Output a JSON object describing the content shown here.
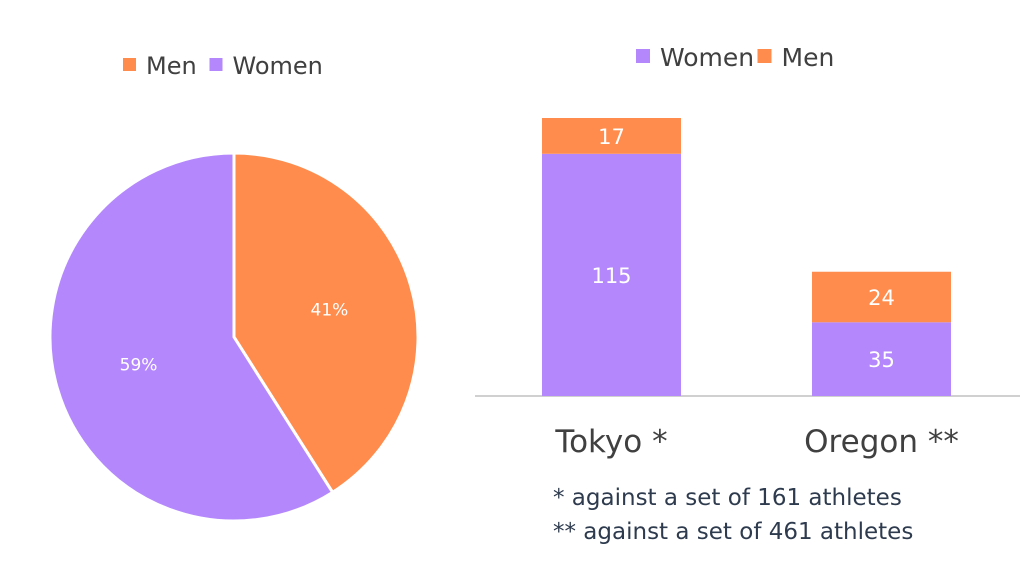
{
  "colors": {
    "men": "#ff8c4d",
    "women": "#b488fc",
    "axis": "#d0d0d0",
    "text": "#404040",
    "data_label": "#ffffff",
    "note": "#2e3b4e"
  },
  "chart_data": [
    {
      "type": "pie",
      "legend": {
        "position": "top",
        "entries": [
          "Men",
          "Women"
        ]
      },
      "slices": [
        {
          "name": "Men",
          "value": 41,
          "label": "41%"
        },
        {
          "name": "Women",
          "value": 59,
          "label": "59%"
        }
      ]
    },
    {
      "type": "bar",
      "stacked": true,
      "legend": {
        "position": "top",
        "entries": [
          "Women",
          "Men"
        ]
      },
      "categories": [
        "Tokyo *",
        "Oregon **"
      ],
      "series": [
        {
          "name": "Women",
          "values": [
            115,
            35
          ]
        },
        {
          "name": "Men",
          "values": [
            17,
            24
          ]
        }
      ],
      "ylim": [
        0,
        132
      ],
      "grid": false
    }
  ],
  "notes": {
    "tokyo": "* against a set of 161 athletes",
    "oregon": "** against a set of 461 athletes"
  }
}
